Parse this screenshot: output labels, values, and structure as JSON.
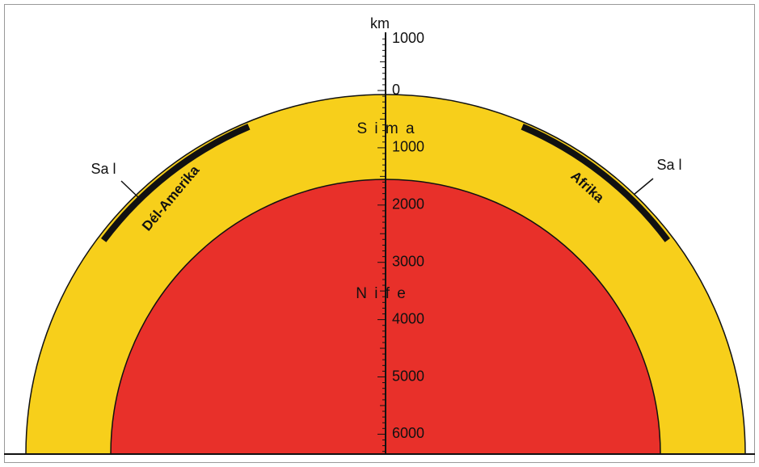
{
  "axis": {
    "unit": "km",
    "labels": [
      "1000",
      "0",
      "1000",
      "2000",
      "3000",
      "4000",
      "5000",
      "6000"
    ]
  },
  "layers": {
    "crust": "S i m a",
    "core": "N i f e"
  },
  "continents": [
    {
      "name": "Dél-Amerika",
      "label": "Sa l"
    },
    {
      "name": "Afrika",
      "label": "Sa l"
    }
  ]
}
